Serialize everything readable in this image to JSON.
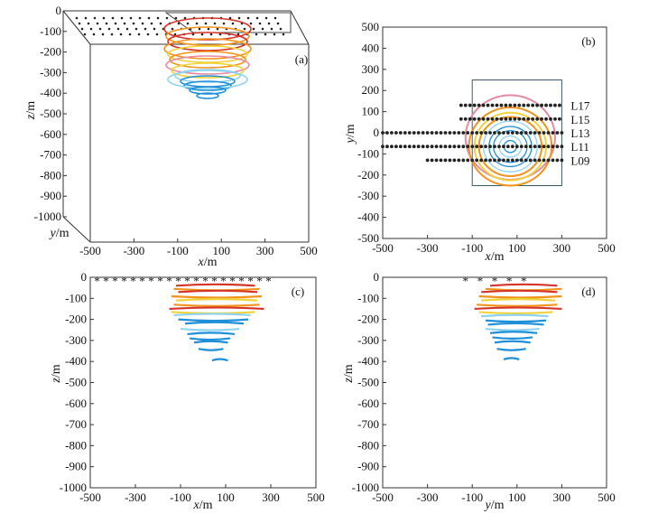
{
  "figure": {
    "colors": {
      "deep": "#1e8fd8",
      "light_blue": "#8fd3ee",
      "yellow": "#f0d23a",
      "orange": "#f2931c",
      "red": "#d4352a",
      "pink": "#e58aa0",
      "dots": "#222222",
      "frame": "#333333"
    }
  },
  "chart_data": [
    {
      "id": "a",
      "type": "scatter",
      "panel_label": "(a)",
      "title": "",
      "xlabel": "x/m",
      "ylabel": "y/m",
      "zlabel": "z/m",
      "xlim": [
        -500,
        500
      ],
      "zlim": [
        -1000,
        0
      ],
      "x_ticks": [
        -500,
        -300,
        -100,
        100,
        300,
        500
      ],
      "x_tick_labels": [
        "-500",
        "-300",
        "-100",
        "100",
        "300",
        "500"
      ],
      "z_ticks": [
        0,
        -100,
        -200,
        -300,
        -400,
        -500,
        -600,
        -700,
        -800,
        -900,
        -1000
      ],
      "z_tick_labels": [
        "0",
        "-100",
        "-200",
        "-300",
        "-400",
        "-500",
        "-600",
        "-700",
        "-800",
        "-900",
        "-1000"
      ],
      "description_series": [
        {
          "name": "isosurface slices",
          "z_top": -20,
          "z_bottom": -320
        }
      ]
    },
    {
      "id": "b",
      "type": "scatter",
      "panel_label": "(b)",
      "title": "",
      "xlabel": "x/m",
      "ylabel": "y/m",
      "xlim": [
        -500,
        500
      ],
      "ylim": [
        -500,
        500
      ],
      "x_ticks": [
        -500,
        -300,
        -100,
        100,
        300,
        500
      ],
      "x_tick_labels": [
        "-500",
        "-300",
        "-100",
        "100",
        "300",
        "500"
      ],
      "y_ticks": [
        500,
        400,
        300,
        200,
        100,
        0,
        -100,
        -200,
        -300,
        -400,
        -500
      ],
      "y_tick_labels": [
        "500",
        "400",
        "300",
        "200",
        "100",
        "0",
        "-100",
        "-200",
        "-300",
        "-400",
        "-500"
      ],
      "survey_lines": [
        {
          "name": "L17",
          "y": 130,
          "x_start": -150,
          "x_end": 300
        },
        {
          "name": "L15",
          "y": 65,
          "x_start": -150,
          "x_end": 300
        },
        {
          "name": "L13",
          "y": 0,
          "x_start": -500,
          "x_end": 300
        },
        {
          "name": "L11",
          "y": -65,
          "x_start": -500,
          "x_end": 300
        },
        {
          "name": "L09",
          "y": -130,
          "x_start": -300,
          "x_end": 300
        }
      ],
      "line_labels": [
        "L17",
        "L15",
        "L13",
        "L11",
        "L09"
      ],
      "survey_box": {
        "x_min": -100,
        "x_max": 300,
        "y_min": -250,
        "y_max": 250
      },
      "anomaly_center": [
        70,
        -65
      ],
      "anomaly_radii": [
        200,
        185,
        160,
        140,
        120,
        95,
        75,
        50,
        28
      ]
    },
    {
      "id": "c",
      "type": "line",
      "panel_label": "(c)",
      "title": "",
      "xlabel": "x/m",
      "ylabel": "z/m",
      "xlim": [
        -500,
        500
      ],
      "ylim": [
        -1000,
        0
      ],
      "x_ticks": [
        -500,
        -300,
        -100,
        100,
        300,
        500
      ],
      "x_tick_labels": [
        "-500",
        "-300",
        "-100",
        "100",
        "300",
        "500"
      ],
      "y_ticks": [
        0,
        -100,
        -200,
        -300,
        -400,
        -500,
        -600,
        -700,
        -800,
        -900,
        -1000
      ],
      "y_tick_labels": [
        "0",
        "-100",
        "-200",
        "-300",
        "-400",
        "-500",
        "-600",
        "-700",
        "-800",
        "-900",
        "-1000"
      ],
      "stations": {
        "start": -470,
        "end": 320,
        "step": 40
      },
      "slices": [
        {
          "z": -40,
          "x0": -120,
          "x1": 230,
          "color": "red"
        },
        {
          "z": -55,
          "x0": -130,
          "x1": 250,
          "color": "orange"
        },
        {
          "z": -70,
          "x0": -110,
          "x1": 240,
          "color": "red"
        },
        {
          "z": -90,
          "x0": -140,
          "x1": 260,
          "color": "orange"
        },
        {
          "z": -110,
          "x0": -120,
          "x1": 240,
          "color": "yellow"
        },
        {
          "z": -130,
          "x0": -130,
          "x1": 250,
          "color": "orange"
        },
        {
          "z": -150,
          "x0": -150,
          "x1": 270,
          "color": "red"
        },
        {
          "z": -165,
          "x0": -140,
          "x1": 230,
          "color": "yellow"
        },
        {
          "z": -180,
          "x0": -130,
          "x1": 210,
          "color": "light_blue"
        },
        {
          "z": -200,
          "x0": -110,
          "x1": 200,
          "color": "deep"
        },
        {
          "z": -220,
          "x0": -80,
          "x1": 180,
          "color": "deep"
        },
        {
          "z": -245,
          "x0": -100,
          "x1": 160,
          "color": "light_blue"
        },
        {
          "z": -270,
          "x0": -70,
          "x1": 140,
          "color": "deep"
        },
        {
          "z": -290,
          "x0": -60,
          "x1": 120,
          "color": "deep"
        },
        {
          "z": -310,
          "x0": -40,
          "x1": 110,
          "color": "deep"
        },
        {
          "z": -340,
          "x0": -20,
          "x1": 90,
          "color": "deep"
        },
        {
          "z": -395,
          "x0": 40,
          "x1": 110,
          "color": "deep"
        }
      ]
    },
    {
      "id": "d",
      "type": "line",
      "panel_label": "(d)",
      "title": "",
      "xlabel": "y/m",
      "ylabel": "z/m",
      "xlim": [
        -500,
        500
      ],
      "ylim": [
        -1000,
        0
      ],
      "x_ticks": [
        -500,
        -300,
        -100,
        100,
        300,
        500
      ],
      "x_tick_labels": [
        "-500",
        "-300",
        "-100",
        "100",
        "300",
        "500"
      ],
      "y_ticks": [
        0,
        -100,
        -200,
        -300,
        -400,
        -500,
        -600,
        -700,
        -800,
        -900,
        -1000
      ],
      "y_tick_labels": [
        "0",
        "-100",
        "-200",
        "-300",
        "-400",
        "-500",
        "-600",
        "-700",
        "-800",
        "-900",
        "-1000"
      ],
      "stations": {
        "start": -130,
        "end": 130,
        "step": 65
      },
      "slices": [
        {
          "z": -40,
          "x0": -20,
          "x1": 280,
          "color": "red"
        },
        {
          "z": -55,
          "x0": -40,
          "x1": 300,
          "color": "orange"
        },
        {
          "z": -70,
          "x0": -60,
          "x1": 280,
          "color": "red"
        },
        {
          "z": -90,
          "x0": -70,
          "x1": 300,
          "color": "orange"
        },
        {
          "z": -110,
          "x0": -60,
          "x1": 270,
          "color": "yellow"
        },
        {
          "z": -130,
          "x0": -80,
          "x1": 280,
          "color": "orange"
        },
        {
          "z": -150,
          "x0": -90,
          "x1": 300,
          "color": "red"
        },
        {
          "z": -165,
          "x0": -70,
          "x1": 260,
          "color": "yellow"
        },
        {
          "z": -185,
          "x0": -60,
          "x1": 240,
          "color": "light_blue"
        },
        {
          "z": -205,
          "x0": -40,
          "x1": 230,
          "color": "deep"
        },
        {
          "z": -225,
          "x0": -30,
          "x1": 220,
          "color": "deep"
        },
        {
          "z": -245,
          "x0": -40,
          "x1": 200,
          "color": "light_blue"
        },
        {
          "z": -265,
          "x0": -20,
          "x1": 190,
          "color": "deep"
        },
        {
          "z": -285,
          "x0": -10,
          "x1": 170,
          "color": "deep"
        },
        {
          "z": -310,
          "x0": 0,
          "x1": 160,
          "color": "deep"
        },
        {
          "z": -340,
          "x0": 10,
          "x1": 140,
          "color": "deep"
        },
        {
          "z": -390,
          "x0": 40,
          "x1": 110,
          "color": "deep"
        }
      ]
    }
  ]
}
